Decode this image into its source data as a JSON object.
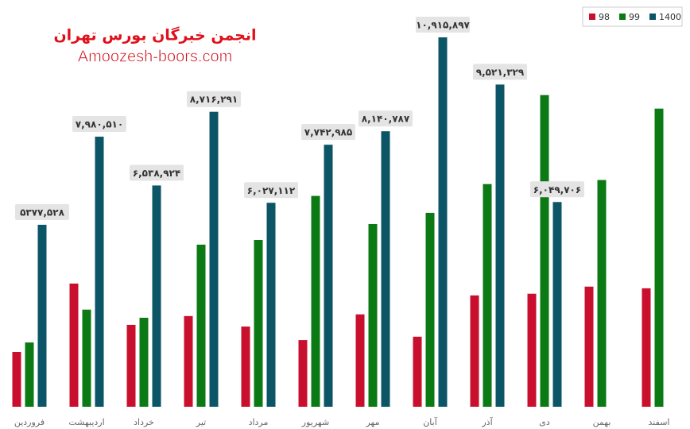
{
  "chart_data": {
    "type": "bar",
    "annotations": [
      "انجمن خبرگان بورس تهران",
      "Amoozesh-boors.com"
    ],
    "categories": [
      "فروردین",
      "اردیبهشت",
      "خرداد",
      "تیر",
      "مرداد",
      "شهریور",
      "مهر",
      "آبان",
      "آذر",
      "دی",
      "بهمن",
      "اسفند"
    ],
    "series": [
      {
        "name": "98",
        "color": "#c8102e",
        "values": [
          1620000,
          3640000,
          2420000,
          2680000,
          2370000,
          1970000,
          2730000,
          2070000,
          3290000,
          3340000,
          3550000,
          3500000
        ]
      },
      {
        "name": "99",
        "color": "#0b7a14",
        "values": [
          1900000,
          2870000,
          2630000,
          4790000,
          4930000,
          6230000,
          5400000,
          5730000,
          6580000,
          9210000,
          6700000,
          8810000
        ]
      },
      {
        "name": "1400",
        "color": "#0b5566",
        "values": [
          5377528,
          7980510,
          6538924,
          8716291,
          6027112,
          7742985,
          8140787,
          10915897,
          9521329,
          6049706,
          null,
          null
        ],
        "value_labels": [
          "۵۳۷۷,۵۲۸",
          "۷,۹۸۰,۵۱۰",
          "۶,۵۳۸,۹۲۴",
          "۸,۷۱۶,۲۹۱",
          "۶,۰۲۷,۱۱۲",
          "۷,۷۴۲,۹۸۵",
          "۸,۱۴۰,۷۸۷",
          "۱۰,۹۱۵,۸۹۷",
          "۹,۵۲۱,۳۲۹",
          "۶,۰۴۹,۷۰۶",
          null,
          null
        ]
      }
    ],
    "legend": "top-right"
  }
}
